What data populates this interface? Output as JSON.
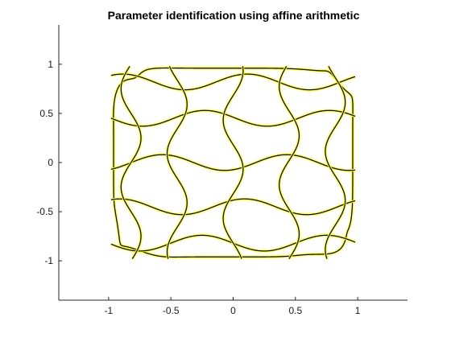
{
  "chart_data": {
    "type": "line",
    "title": "Parameter identification using affine arithmetic",
    "xlabel": "",
    "ylabel": "",
    "xlim": [
      -1.4,
      1.4
    ],
    "ylim": [
      -1.4,
      1.4
    ],
    "xticks": [
      -1,
      -0.5,
      0,
      0.5,
      1
    ],
    "xtick_labels": [
      "-1",
      "-0.5",
      "0",
      "0.5",
      "1"
    ],
    "yticks": [
      -1,
      -0.5,
      0,
      0.5,
      1
    ],
    "ytick_labels": [
      "-1",
      "-0.5",
      "0",
      "0.5",
      "1"
    ],
    "grid": false,
    "box": "left-bottom axes only",
    "curve_colors": {
      "enclosure": "#ffff00",
      "trajectory": "#000000"
    },
    "description_series": [
      {
        "name": "",
        "x_range": [
          -1,
          1
        ],
        "y_range": [
          -1,
          1
        ],
        "params": {
          "x_lobes_a": 2,
          "x_lobes_b": 6,
          "y_lobes_a": 4,
          "y_lobes_b": 8
        }
      }
    ]
  }
}
